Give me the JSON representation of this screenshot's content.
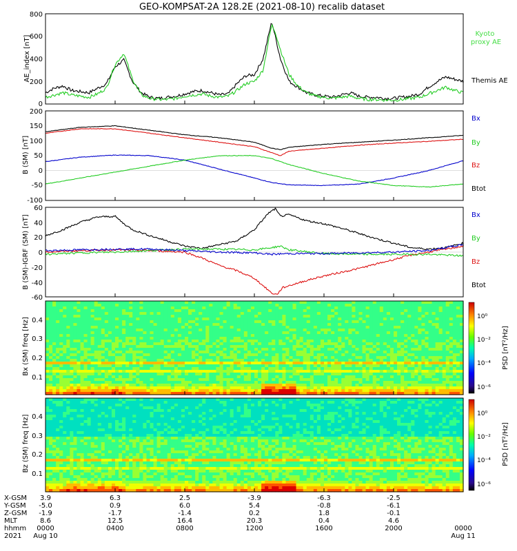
{
  "title": "GEO-KOMPSAT-2A 128.2E (2021-08-10) recalib dataset",
  "colors": {
    "black": "#000000",
    "blue": "#0000cc",
    "green": "#22cc22",
    "red": "#dd1111",
    "kyoto_green": "#44dd44"
  },
  "chart_data": [
    {
      "id": "ae",
      "type": "line",
      "ylabel": "AE_index [nT]",
      "ylim": [
        0,
        800
      ],
      "yticks": [
        "0",
        "200",
        "400",
        "600",
        "800"
      ],
      "legend": [
        "Kyoto proxy AE",
        "Themis AE"
      ],
      "legend_placement": "right",
      "series": [
        {
          "name": "Themis AE",
          "color": "#000000",
          "x": [
            0,
            0.5,
            1,
            1.5,
            2,
            2.5,
            3,
            3.5,
            4,
            4.5,
            5,
            5.5,
            6,
            6.5,
            7,
            7.5,
            8,
            8.5,
            9,
            9.5,
            10,
            10.5,
            11,
            11.5,
            12,
            12.5,
            12.8,
            13,
            13.2,
            13.5,
            14,
            14.5,
            15,
            15.5,
            16,
            16.5,
            17,
            17.5,
            18,
            18.5,
            19,
            19.5,
            20,
            20.5,
            21,
            21.5,
            22,
            22.5,
            23,
            23.5,
            24
          ],
          "y": [
            100,
            140,
            160,
            120,
            110,
            100,
            140,
            180,
            330,
            390,
            200,
            100,
            60,
            50,
            60,
            70,
            90,
            110,
            120,
            100,
            80,
            90,
            180,
            250,
            260,
            400,
            600,
            730,
            600,
            400,
            200,
            150,
            100,
            80,
            70,
            60,
            80,
            100,
            70,
            60,
            60,
            50,
            50,
            60,
            70,
            90,
            150,
            200,
            240,
            220,
            200
          ]
        },
        {
          "name": "Kyoto proxy AE",
          "color": "#22cc22",
          "x": [
            0,
            0.5,
            1,
            1.5,
            2,
            2.5,
            3,
            3.5,
            4,
            4.5,
            5,
            5.5,
            6,
            6.5,
            7,
            7.5,
            8,
            8.5,
            9,
            9.5,
            10,
            10.5,
            11,
            11.5,
            12,
            12.5,
            12.8,
            13,
            13.2,
            13.5,
            14,
            14.5,
            15,
            15.5,
            16,
            16.5,
            17,
            17.5,
            18,
            18.5,
            19,
            19.5,
            20,
            20.5,
            21,
            21.5,
            22,
            22.5,
            23,
            23.5,
            24
          ],
          "y": [
            60,
            80,
            100,
            80,
            70,
            60,
            90,
            140,
            350,
            450,
            220,
            80,
            50,
            40,
            40,
            50,
            70,
            80,
            90,
            70,
            60,
            70,
            120,
            180,
            200,
            300,
            550,
            700,
            640,
            480,
            260,
            160,
            100,
            70,
            60,
            50,
            60,
            70,
            50,
            40,
            40,
            35,
            35,
            40,
            50,
            60,
            90,
            120,
            150,
            120,
            100
          ]
        }
      ]
    },
    {
      "id": "bsm",
      "type": "line",
      "ylabel": "B (SM) [nT]",
      "ylim": [
        -100,
        200
      ],
      "yticks": [
        "-100",
        "-50",
        "0",
        "50",
        "100",
        "150",
        "200"
      ],
      "legend": [
        "Bx",
        "By",
        "Bz",
        "Btot"
      ],
      "legend_placement": "right",
      "series": [
        {
          "name": "Bx",
          "color": "#0000cc",
          "x": [
            0,
            2,
            4,
            6,
            8,
            10,
            12,
            13,
            14,
            16,
            18,
            20,
            22,
            24
          ],
          "y": [
            30,
            45,
            52,
            50,
            35,
            5,
            -25,
            -40,
            -48,
            -50,
            -45,
            -25,
            0,
            33
          ]
        },
        {
          "name": "By",
          "color": "#22cc22",
          "x": [
            0,
            2,
            4,
            6,
            8,
            10,
            12,
            13,
            14,
            16,
            18,
            20,
            22,
            24
          ],
          "y": [
            -45,
            -25,
            -5,
            15,
            35,
            50,
            50,
            40,
            20,
            -10,
            -35,
            -50,
            -55,
            -45
          ]
        },
        {
          "name": "Bz",
          "color": "#dd1111",
          "x": [
            0,
            2,
            4,
            6,
            8,
            10,
            12,
            13,
            13.5,
            14,
            16,
            18,
            20,
            22,
            24
          ],
          "y": [
            125,
            140,
            140,
            125,
            110,
            95,
            80,
            60,
            50,
            65,
            75,
            85,
            92,
            98,
            105
          ]
        },
        {
          "name": "Btot",
          "color": "#000000",
          "x": [
            0,
            2,
            4,
            6,
            8,
            10,
            12,
            13,
            13.5,
            14,
            16,
            18,
            20,
            22,
            24
          ],
          "y": [
            130,
            145,
            150,
            135,
            120,
            110,
            95,
            75,
            70,
            78,
            88,
            95,
            102,
            110,
            118
          ]
        }
      ]
    },
    {
      "id": "bsm_igrf",
      "type": "line",
      "ylabel": "B (SM)-IGRF (SM) [nT]",
      "ylim": [
        -60,
        60
      ],
      "yticks": [
        "-60",
        "-40",
        "-20",
        "0",
        "20",
        "40",
        "60"
      ],
      "legend": [
        "Bx",
        "By",
        "Bz",
        "Btot"
      ],
      "legend_placement": "right",
      "series": [
        {
          "name": "Btot",
          "color": "#000000",
          "x": [
            0,
            1,
            2,
            3,
            4,
            4.5,
            5,
            6,
            7,
            8,
            9,
            10,
            11,
            12,
            12.8,
            13.2,
            13.5,
            14,
            15,
            16,
            17,
            18,
            19,
            20,
            21,
            22,
            23,
            24
          ],
          "y": [
            22,
            30,
            40,
            47,
            48,
            38,
            30,
            22,
            15,
            8,
            5,
            10,
            15,
            30,
            52,
            58,
            48,
            50,
            42,
            38,
            32,
            25,
            18,
            12,
            6,
            4,
            6,
            12
          ]
        },
        {
          "name": "Bz",
          "color": "#dd1111",
          "x": [
            0,
            2,
            4,
            6,
            8,
            9,
            10,
            11,
            12,
            12.5,
            13,
            13.3,
            13.6,
            14,
            15,
            16,
            17,
            18,
            19,
            20,
            21,
            22,
            23,
            24
          ],
          "y": [
            0,
            2,
            3,
            2,
            0,
            -8,
            -18,
            -25,
            -35,
            -45,
            -55,
            -57,
            -48,
            -45,
            -38,
            -32,
            -27,
            -22,
            -16,
            -10,
            -4,
            0,
            4,
            8
          ]
        },
        {
          "name": "By",
          "color": "#22cc22",
          "x": [
            0,
            2,
            4,
            6,
            8,
            10,
            12,
            13,
            13.5,
            14,
            16,
            18,
            20,
            22,
            24
          ],
          "y": [
            -3,
            -1,
            0,
            2,
            4,
            4,
            3,
            6,
            8,
            3,
            -2,
            -3,
            -3,
            -3,
            -5
          ]
        },
        {
          "name": "Bx",
          "color": "#0000cc",
          "x": [
            0,
            2,
            4,
            6,
            8,
            10,
            12,
            13,
            14,
            16,
            18,
            20,
            22,
            24
          ],
          "y": [
            2,
            3,
            4,
            4,
            2,
            0,
            -1,
            -3,
            -2,
            -2,
            -1,
            0,
            2,
            10
          ]
        }
      ]
    },
    {
      "id": "bx_spec",
      "type": "heatmap",
      "ylabel": "Bx (SM) freq [Hz]",
      "ylim": [
        0,
        0.5
      ],
      "yticks": [
        "0.1",
        "0.2",
        "0.3",
        "0.4"
      ],
      "colorbar_label": "PSD [nT²/Hz]",
      "colorbar_ticks": [
        "10⁰",
        "10⁻²",
        "10⁻⁴",
        "10⁻⁶"
      ]
    },
    {
      "id": "bz_spec",
      "type": "heatmap",
      "ylabel": "Bz (SM) freq [Hz]",
      "ylim": [
        0,
        0.5
      ],
      "yticks": [
        "0.1",
        "0.2",
        "0.3",
        "0.4"
      ],
      "colorbar_label": "PSD [nT²/Hz]",
      "colorbar_ticks": [
        "10⁰",
        "10⁻²",
        "10⁻⁴",
        "10⁻⁶"
      ]
    }
  ],
  "ephemeris": {
    "row_labels": [
      "X-GSM",
      "Y-GSM",
      "Z-GSM",
      "MLT",
      "hhmm",
      "2021"
    ],
    "columns": [
      {
        "hour": 0,
        "values": [
          "3.9",
          "-5.0",
          "-1.9",
          "8.6",
          "0000",
          "Aug 10"
        ]
      },
      {
        "hour": 4,
        "values": [
          "6.3",
          "0.9",
          "-1.7",
          "12.5",
          "0400",
          ""
        ]
      },
      {
        "hour": 8,
        "values": [
          "2.5",
          "6.0",
          "-1.4",
          "16.4",
          "0800",
          ""
        ]
      },
      {
        "hour": 12,
        "values": [
          "-3.9",
          "5.4",
          "0.2",
          "20.3",
          "1200",
          ""
        ]
      },
      {
        "hour": 16,
        "values": [
          "-6.3",
          "-0.8",
          "1.8",
          "0.4",
          "1600",
          ""
        ]
      },
      {
        "hour": 20,
        "values": [
          "-2.5",
          "-6.1",
          "-0.1",
          "4.6",
          "2000",
          ""
        ]
      },
      {
        "hour": 24,
        "values": [
          "",
          "",
          "",
          "",
          "0000",
          "Aug 11"
        ]
      }
    ]
  }
}
